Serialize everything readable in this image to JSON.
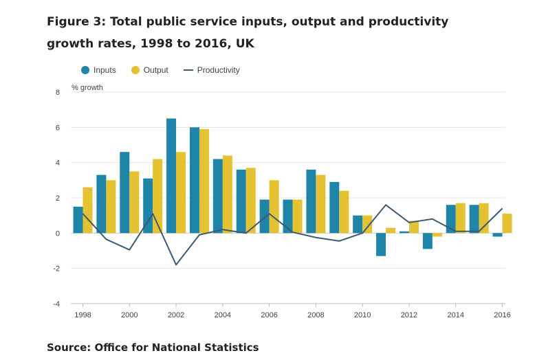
{
  "title": "Figure 3: Total public service inputs, output and productivity growth rates, 1998 to 2016, UK",
  "source": "Source: Office for National Statistics",
  "colors": {
    "inputs": "#1f85a8",
    "output": "#e5c232",
    "productivity": "#3c5a72",
    "grid": "#e6e6e6",
    "axis": "#bbbbbb"
  },
  "chart_data": {
    "type": "bar",
    "ylabel": "% growth",
    "ylim": [
      -4,
      8
    ],
    "yticks": [
      -4,
      -2,
      0,
      2,
      4,
      6,
      8
    ],
    "x": [
      1998,
      1999,
      2000,
      2001,
      2002,
      2003,
      2004,
      2005,
      2006,
      2007,
      2008,
      2009,
      2010,
      2011,
      2012,
      2013,
      2014,
      2015,
      2016
    ],
    "xticklabels": [
      "1998",
      "2000",
      "2002",
      "2004",
      "2006",
      "2008",
      "2010",
      "2012",
      "2014",
      "2016"
    ],
    "grid": true,
    "legend_position": "top-left",
    "series": [
      {
        "name": "Inputs",
        "type": "bar",
        "color": "#1f85a8",
        "values": [
          1.5,
          3.3,
          4.6,
          3.1,
          6.5,
          6.0,
          4.2,
          3.6,
          1.9,
          1.9,
          3.6,
          2.9,
          1.0,
          -1.3,
          0.1,
          -0.9,
          1.6,
          1.6,
          -0.2
        ]
      },
      {
        "name": "Output",
        "type": "bar",
        "color": "#e5c232",
        "values": [
          2.6,
          3.0,
          3.5,
          4.2,
          4.6,
          5.9,
          4.4,
          3.7,
          3.0,
          1.9,
          3.3,
          2.4,
          1.0,
          0.3,
          0.7,
          -0.2,
          1.7,
          1.7,
          1.1
        ]
      },
      {
        "name": "Productivity",
        "type": "line",
        "color": "#3c5a72",
        "values": [
          1.1,
          -0.35,
          -0.95,
          1.1,
          -1.8,
          -0.1,
          0.2,
          0.0,
          1.1,
          0.05,
          -0.25,
          -0.45,
          0.0,
          1.6,
          0.6,
          0.8,
          0.1,
          0.1,
          1.4
        ]
      }
    ]
  }
}
